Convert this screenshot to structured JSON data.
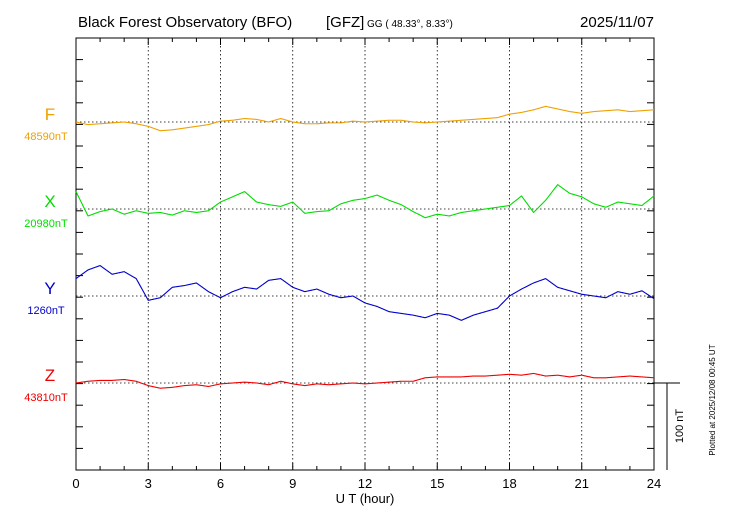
{
  "header": {
    "observatory": "Black Forest Observatory (BFO)",
    "institute": "[GFZ]",
    "coords": "GG ( 48.33°,   8.33°)",
    "date": "2025/11/07"
  },
  "footer": {
    "plotted": "Plotted at 2025/12/08 00:45 UT"
  },
  "chart_data": {
    "type": "line",
    "title": "Black Forest Observatory (BFO)",
    "xlabel": "U T (hour)",
    "xlim": [
      0,
      24
    ],
    "xticks": [
      "0",
      "3",
      "6",
      "9",
      "12",
      "15",
      "18",
      "21",
      "24"
    ],
    "scale_label": "100 nT",
    "scale_nT": 100,
    "series": [
      {
        "name": "F",
        "baseline_label": "48590nT",
        "baseline_nT": 48590,
        "color": "#f0a000",
        "x": [
          0,
          0.5,
          1,
          1.5,
          2,
          2.5,
          3,
          3.5,
          4,
          4.5,
          5,
          5.5,
          6,
          6.5,
          7,
          7.5,
          8,
          8.5,
          9,
          9.5,
          10,
          10.5,
          11,
          11.5,
          12,
          12.5,
          13,
          13.5,
          14,
          14.5,
          15,
          15.5,
          16,
          16.5,
          17,
          17.5,
          18,
          18.5,
          19,
          19.5,
          20,
          20.5,
          21,
          21.5,
          22,
          22.5,
          23,
          23.5,
          24
        ],
        "y": [
          0,
          -3,
          -2,
          -1,
          0,
          -2,
          -5,
          -10,
          -9,
          -7,
          -5,
          -3,
          1,
          2,
          4,
          3,
          0,
          4,
          0,
          -2,
          -2,
          -1,
          -1,
          1,
          0,
          1,
          2,
          2,
          0,
          -1,
          0,
          1,
          2,
          3,
          4,
          5,
          9,
          11,
          14,
          18,
          15,
          12,
          10,
          12,
          13,
          14,
          12,
          13,
          14
        ]
      },
      {
        "name": "X",
        "baseline_label": "20980nT",
        "baseline_nT": 20980,
        "color": "#00dd00",
        "x": [
          0,
          0.5,
          1,
          1.5,
          2,
          2.5,
          3,
          3.5,
          4,
          4.5,
          5,
          5.5,
          6,
          6.5,
          7,
          7.5,
          8,
          8.5,
          9,
          9.5,
          10,
          10.5,
          11,
          11.5,
          12,
          12.5,
          13,
          13.5,
          14,
          14.5,
          15,
          15.5,
          16,
          16.5,
          17,
          17.5,
          18,
          18.5,
          19,
          19.5,
          20,
          20.5,
          21,
          21.5,
          22,
          22.5,
          23,
          23.5,
          24
        ],
        "y": [
          20,
          -8,
          -3,
          0,
          -6,
          -2,
          -5,
          -4,
          -7,
          -2,
          -4,
          -2,
          8,
          14,
          20,
          8,
          5,
          3,
          8,
          -5,
          -3,
          -2,
          6,
          10,
          12,
          16,
          10,
          5,
          -3,
          -10,
          -6,
          -8,
          -4,
          -2,
          0,
          2,
          4,
          15,
          -4,
          10,
          28,
          18,
          14,
          6,
          2,
          8,
          6,
          4,
          15
        ]
      },
      {
        "name": "Y",
        "baseline_label": "1260nT",
        "baseline_nT": 1260,
        "color": "#0000cc",
        "x": [
          0,
          0.5,
          1,
          1.5,
          2,
          2.5,
          3,
          3.5,
          4,
          4.5,
          5,
          5.5,
          6,
          6.5,
          7,
          7.5,
          8,
          8.5,
          9,
          9.5,
          10,
          10.5,
          11,
          11.5,
          12,
          12.5,
          13,
          13.5,
          14,
          14.5,
          15,
          15.5,
          16,
          16.5,
          17,
          17.5,
          18,
          18.5,
          19,
          19.5,
          20,
          20.5,
          21,
          21.5,
          22,
          22.5,
          23,
          23.5,
          24
        ],
        "y": [
          20,
          30,
          35,
          25,
          28,
          20,
          -5,
          -2,
          10,
          12,
          15,
          5,
          -2,
          5,
          10,
          8,
          18,
          20,
          10,
          5,
          8,
          2,
          -2,
          0,
          -8,
          -12,
          -18,
          -20,
          -22,
          -25,
          -20,
          -22,
          -28,
          -22,
          -18,
          -14,
          0,
          8,
          15,
          20,
          10,
          6,
          2,
          0,
          -2,
          5,
          2,
          6,
          -3
        ]
      },
      {
        "name": "Z",
        "baseline_label": "43810nT",
        "baseline_nT": 43810,
        "color": "#ee0000",
        "x": [
          0,
          0.5,
          1,
          1.5,
          2,
          2.5,
          3,
          3.5,
          4,
          4.5,
          5,
          5.5,
          6,
          6.5,
          7,
          7.5,
          8,
          8.5,
          9,
          9.5,
          10,
          10.5,
          11,
          11.5,
          12,
          12.5,
          13,
          13.5,
          14,
          14.5,
          15,
          15.5,
          16,
          16.5,
          17,
          17.5,
          18,
          18.5,
          19,
          19.5,
          20,
          20.5,
          21,
          21.5,
          22,
          22.5,
          23,
          23.5,
          24
        ],
        "y": [
          0,
          2,
          3,
          3,
          4,
          2,
          -3,
          -6,
          -5,
          -3,
          -2,
          -4,
          -1,
          0,
          1,
          0,
          -2,
          2,
          -1,
          -3,
          -1,
          -2,
          -1,
          0,
          -1,
          0,
          1,
          2,
          2,
          6,
          7,
          7,
          7,
          8,
          8,
          9,
          10,
          9,
          11,
          8,
          9,
          7,
          9,
          6,
          6,
          7,
          8,
          7,
          6
        ]
      }
    ]
  }
}
